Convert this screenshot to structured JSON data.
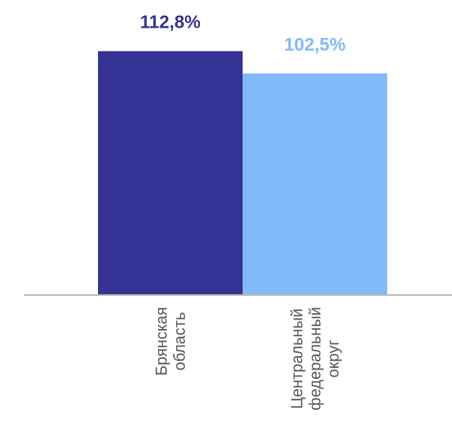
{
  "chart_data": {
    "type": "bar",
    "categories": [
      [
        "Брянская",
        "область"
      ],
      [
        "Центральный",
        "федеральный",
        "округ"
      ]
    ],
    "values": [
      112.8,
      102.5
    ],
    "data_labels": [
      "112,8%",
      "102,5%"
    ],
    "colors": [
      "#353295",
      "#80BAFB"
    ],
    "axis_color": "#BBBBBB",
    "ylim": [
      0,
      114.5
    ],
    "grid": false,
    "legend": "none"
  }
}
